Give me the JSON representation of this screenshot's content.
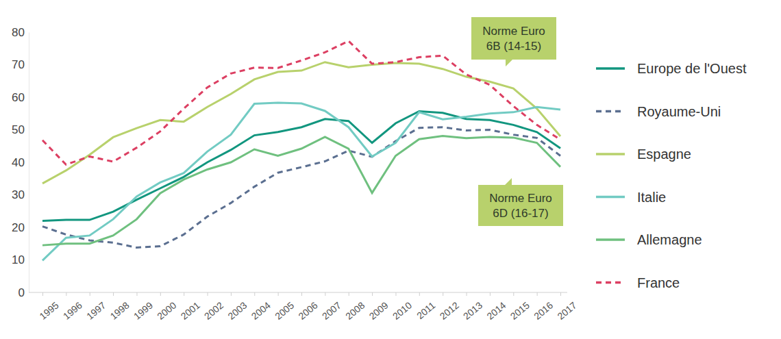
{
  "chart_data": {
    "type": "line",
    "categories": [
      "1995",
      "1996",
      "1997",
      "1998",
      "1999",
      "2000",
      "2001",
      "2002",
      "2003",
      "2004",
      "2005",
      "2006",
      "2007",
      "2008",
      "2009",
      "2010",
      "2011",
      "2012",
      "2013",
      "2014",
      "2015",
      "2016",
      "2017"
    ],
    "ylim": [
      0,
      80
    ],
    "yticks": [
      0,
      10,
      20,
      30,
      40,
      50,
      60,
      70,
      80
    ],
    "grid": false,
    "legend": "right",
    "annotations": [
      [
        "Norme Euro",
        "6B (14-15)"
      ],
      [
        "Norme Euro",
        "6D (16-17)"
      ]
    ],
    "series": [
      {
        "name": "Europe de l'Ouest",
        "color": "#12967f",
        "line_style": "solid",
        "values": [
          22,
          22.3,
          22.3,
          24.8,
          28.5,
          32,
          35.5,
          40,
          43.8,
          48.3,
          49.3,
          50.8,
          53.3,
          52.7,
          46,
          52,
          55.7,
          55.2,
          53.3,
          53,
          51.5,
          49.3,
          44.3
        ]
      },
      {
        "name": "Royaume-Uni",
        "color": "#5b6f90",
        "line_style": "dashed",
        "values": [
          20.3,
          17.8,
          16,
          15.3,
          13.8,
          14.2,
          17.8,
          23.3,
          27.5,
          32.5,
          36.8,
          38.5,
          40.3,
          43.6,
          41.7,
          46.5,
          50.6,
          50.8,
          49.8,
          50,
          48.5,
          47.5,
          42
        ]
      },
      {
        "name": "Espagne",
        "color": "#b8d16c",
        "line_style": "solid",
        "values": [
          33.5,
          37.5,
          42.3,
          47.7,
          50.5,
          53,
          52.5,
          57,
          61,
          65.5,
          67.8,
          68.2,
          70.8,
          69.2,
          70,
          70.5,
          70.3,
          68.7,
          66.3,
          64.8,
          62.7,
          56.5,
          48
        ]
      },
      {
        "name": "Italie",
        "color": "#72cbc3",
        "line_style": "solid",
        "values": [
          9.8,
          16.8,
          17.5,
          22.5,
          29.5,
          33.8,
          36.7,
          43.3,
          48.5,
          58,
          58.3,
          58.1,
          55.8,
          50.8,
          41.8,
          46,
          55.4,
          53.2,
          54,
          55,
          55.4,
          57,
          56.2
        ]
      },
      {
        "name": "Allemagne",
        "color": "#6fc07f",
        "line_style": "solid",
        "values": [
          14.5,
          15,
          15,
          17.5,
          22.5,
          30.5,
          34.7,
          37.8,
          40,
          44,
          42,
          44.2,
          47.8,
          44.2,
          30.6,
          42,
          47.1,
          48.1,
          47.4,
          47.8,
          47.6,
          46,
          38.6
        ]
      },
      {
        "name": "France",
        "color": "#dc3f62",
        "line_style": "dashed",
        "values": [
          46.8,
          39.3,
          41.8,
          40.2,
          44.5,
          49.5,
          56.5,
          63,
          67.3,
          69.1,
          69,
          71.3,
          73.8,
          77.3,
          70.3,
          70.8,
          72.3,
          72.8,
          67,
          63.8,
          57.3,
          51.5,
          47
        ]
      }
    ]
  }
}
